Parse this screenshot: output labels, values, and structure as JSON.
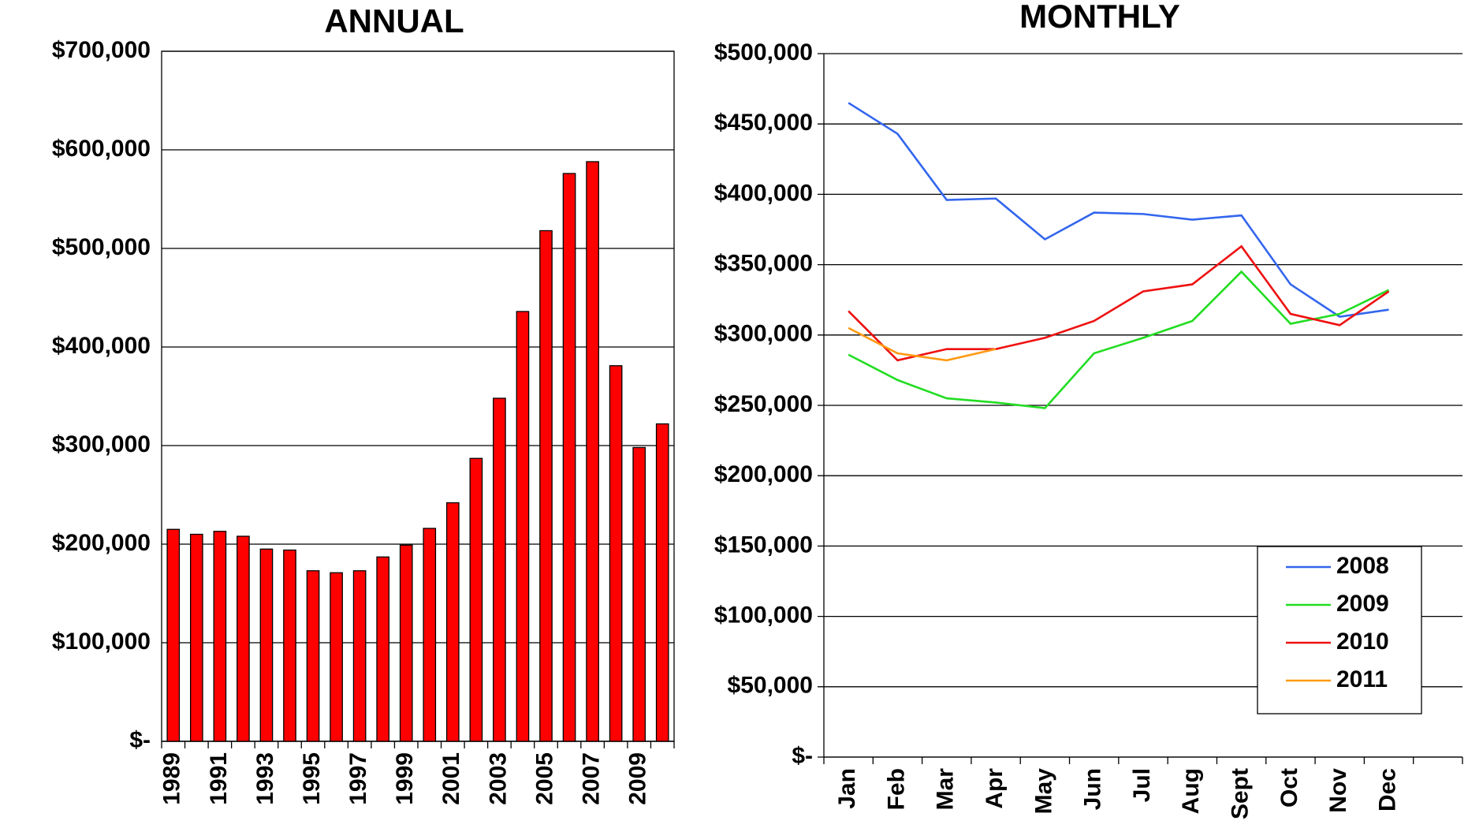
{
  "chart_data": [
    {
      "type": "bar",
      "title": "ANNUAL",
      "categories": [
        "1989",
        null,
        "1991",
        null,
        "1993",
        null,
        "1995",
        null,
        "1997",
        null,
        "1999",
        null,
        "2001",
        null,
        "2003",
        null,
        "2005",
        null,
        "2007",
        null,
        "2009",
        null
      ],
      "values": [
        215000,
        210000,
        213000,
        208000,
        195000,
        194000,
        173000,
        171000,
        173000,
        187000,
        199000,
        216000,
        242000,
        287000,
        348000,
        436000,
        518000,
        576000,
        588000,
        381000,
        298000,
        322000
      ],
      "color": "#ff0000",
      "ylim": [
        0,
        700000
      ],
      "yticks": [
        {
          "value": 0,
          "label": "$-"
        },
        {
          "value": 100000,
          "label": "$100,000"
        },
        {
          "value": 200000,
          "label": "$200,000"
        },
        {
          "value": 300000,
          "label": "$300,000"
        },
        {
          "value": 400000,
          "label": "$400,000"
        },
        {
          "value": 500000,
          "label": "$500,000"
        },
        {
          "value": 600000,
          "label": "$600,000"
        },
        {
          "value": 700000,
          "label": "$700,000"
        }
      ],
      "grid": true
    },
    {
      "type": "line",
      "title": "MONTHLY",
      "categories": [
        "Jan",
        "Feb",
        "Mar",
        "Apr",
        "May",
        "Jun",
        "Jul",
        "Aug",
        "Sept",
        "Oct",
        "Nov",
        "Dec",
        null
      ],
      "series": [
        {
          "name": "2008",
          "color": "#3366ee",
          "values": [
            465000,
            443000,
            396000,
            397000,
            368000,
            387000,
            386000,
            382000,
            385000,
            336000,
            313000,
            318000,
            null
          ]
        },
        {
          "name": "2009",
          "color": "#22dd22",
          "values": [
            286000,
            268000,
            255000,
            252000,
            248000,
            287000,
            298000,
            310000,
            345000,
            308000,
            315000,
            332000,
            null
          ]
        },
        {
          "name": "2010",
          "color": "#ee1111",
          "values": [
            317000,
            282000,
            290000,
            290000,
            298000,
            310000,
            331000,
            336000,
            363000,
            315000,
            307000,
            331000,
            null
          ]
        },
        {
          "name": "2011",
          "color": "#ff9911",
          "values": [
            305000,
            287000,
            282000,
            290000,
            null,
            null,
            null,
            null,
            null,
            null,
            null,
            null,
            null
          ]
        }
      ],
      "ylim": [
        0,
        500000
      ],
      "yticks": [
        {
          "value": 0,
          "label": "$-"
        },
        {
          "value": 50000,
          "label": "$50,000"
        },
        {
          "value": 100000,
          "label": "$100,000"
        },
        {
          "value": 150000,
          "label": "$150,000"
        },
        {
          "value": 200000,
          "label": "$200,000"
        },
        {
          "value": 250000,
          "label": "$250,000"
        },
        {
          "value": 300000,
          "label": "$300,000"
        },
        {
          "value": 350000,
          "label": "$350,000"
        },
        {
          "value": 400000,
          "label": "$400,000"
        },
        {
          "value": 450000,
          "label": "$450,000"
        },
        {
          "value": 500000,
          "label": "$500,000"
        }
      ],
      "grid": true,
      "legend": "lower right"
    }
  ]
}
